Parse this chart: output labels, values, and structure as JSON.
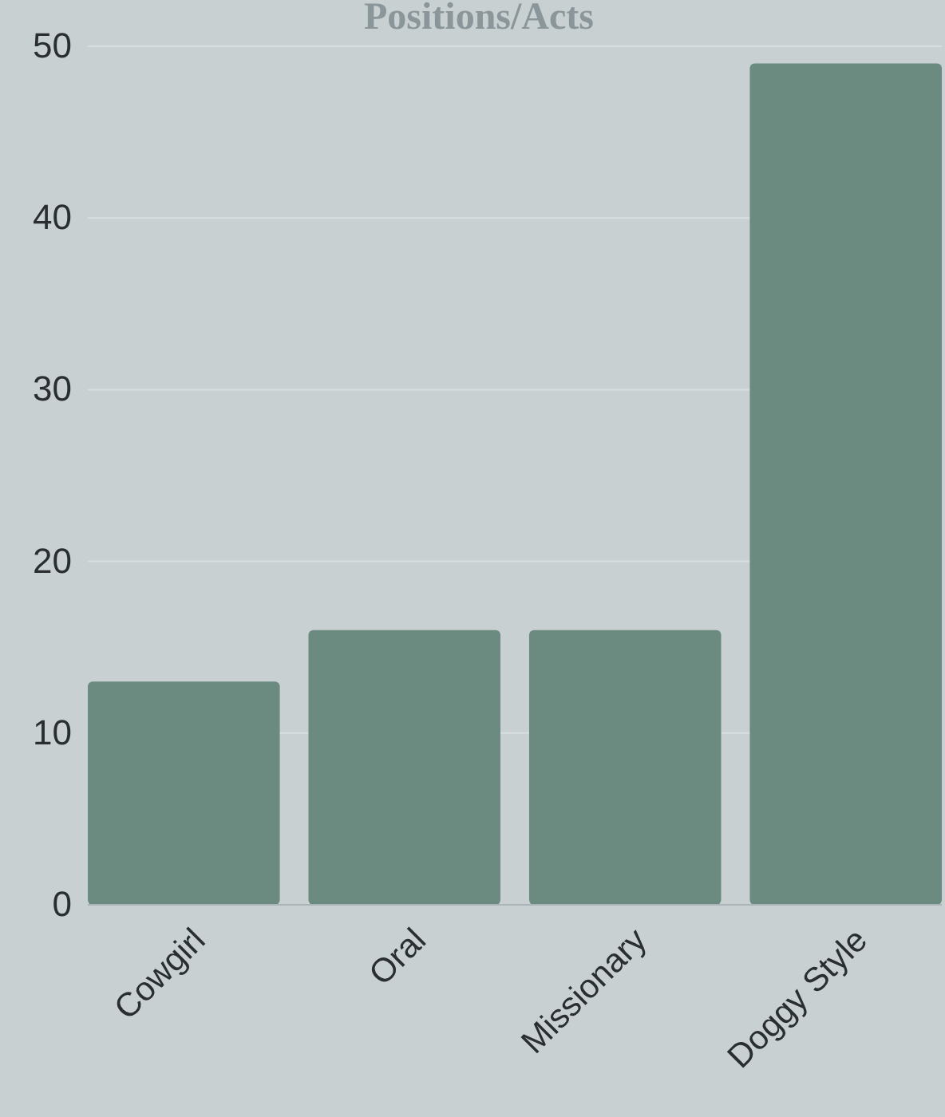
{
  "chart_data": {
    "type": "bar",
    "title": "Positions/Acts",
    "categories": [
      "Cowgirl",
      "Oral",
      "Missionary",
      "Doggy Style"
    ],
    "values": [
      13,
      16,
      16,
      49
    ],
    "color": "#6b8a80",
    "ylim": [
      0,
      50
    ],
    "yticks": [
      0,
      10,
      20,
      30,
      40,
      50
    ],
    "grid": "y"
  }
}
